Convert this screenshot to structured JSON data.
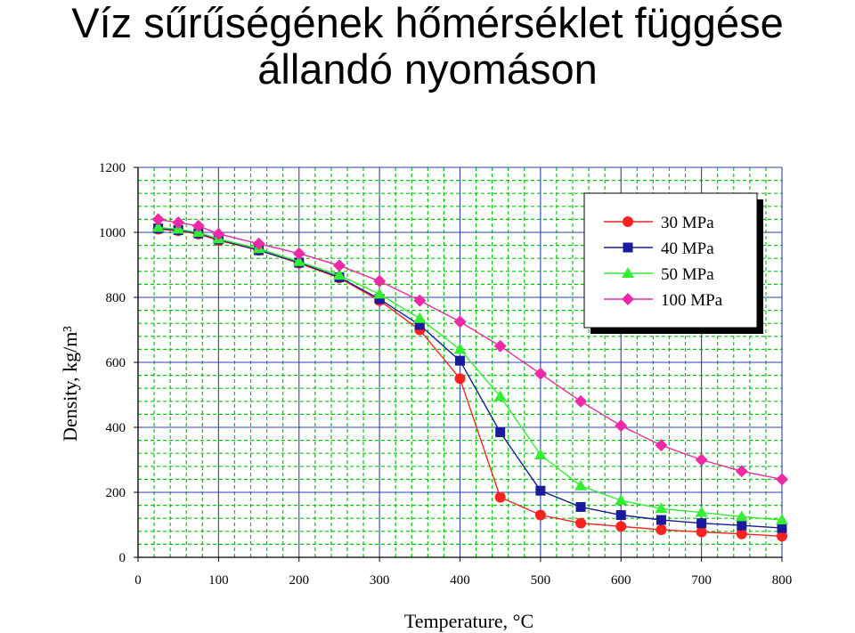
{
  "slide": {
    "title_line1": "Víz sűrűségének hőmérséklet függése",
    "title_line2": "állandó nyomáson"
  },
  "chart_data": {
    "type": "line",
    "xlabel": "Temperature, °C",
    "ylabel": "Density, kg/m³",
    "xlim": [
      0,
      800
    ],
    "ylim": [
      0,
      1200
    ],
    "xticks": [
      0,
      100,
      200,
      300,
      400,
      500,
      600,
      700,
      800
    ],
    "yticks": [
      0,
      200,
      400,
      600,
      800,
      1000,
      1200
    ],
    "grid": true,
    "grid_color": "#00cc00",
    "legend_position": "top-right",
    "x": [
      25,
      50,
      75,
      100,
      150,
      200,
      250,
      300,
      350,
      400,
      450,
      500,
      550,
      600,
      650,
      700,
      750,
      800
    ],
    "series": [
      {
        "name": "30 MPa",
        "color": "#ff2020",
        "marker": "circle",
        "points": [
          [
            25,
            1010
          ],
          [
            50,
            1005
          ],
          [
            75,
            995
          ],
          [
            100,
            975
          ],
          [
            150,
            945
          ],
          [
            200,
            905
          ],
          [
            250,
            860
          ],
          [
            300,
            790
          ],
          [
            350,
            700
          ],
          [
            400,
            550
          ],
          [
            450,
            185
          ],
          [
            500,
            130
          ],
          [
            550,
            105
          ],
          [
            600,
            95
          ],
          [
            650,
            85
          ],
          [
            700,
            78
          ],
          [
            750,
            72
          ],
          [
            800,
            65
          ]
        ]
      },
      {
        "name": "40 MPa",
        "color": "#1a1a9c",
        "marker": "square",
        "points": [
          [
            25,
            1012
          ],
          [
            50,
            1007
          ],
          [
            75,
            997
          ],
          [
            100,
            978
          ],
          [
            150,
            945
          ],
          [
            200,
            907
          ],
          [
            250,
            862
          ],
          [
            300,
            795
          ],
          [
            350,
            715
          ],
          [
            400,
            605
          ],
          [
            450,
            385
          ],
          [
            500,
            205
          ],
          [
            550,
            155
          ],
          [
            600,
            130
          ],
          [
            650,
            115
          ],
          [
            700,
            105
          ],
          [
            750,
            98
          ],
          [
            800,
            90
          ]
        ]
      },
      {
        "name": "50 MPa",
        "color": "#33ee33",
        "marker": "triangle",
        "points": [
          [
            25,
            1015
          ],
          [
            50,
            1010
          ],
          [
            75,
            1000
          ],
          [
            100,
            980
          ],
          [
            150,
            950
          ],
          [
            200,
            910
          ],
          [
            250,
            868
          ],
          [
            300,
            810
          ],
          [
            350,
            735
          ],
          [
            400,
            640
          ],
          [
            450,
            495
          ],
          [
            500,
            315
          ],
          [
            550,
            220
          ],
          [
            600,
            175
          ],
          [
            650,
            150
          ],
          [
            700,
            138
          ],
          [
            750,
            125
          ],
          [
            800,
            115
          ]
        ]
      },
      {
        "name": "100 MPa",
        "color": "#ee2aa6",
        "marker": "diamond",
        "points": [
          [
            25,
            1040
          ],
          [
            50,
            1030
          ],
          [
            75,
            1020
          ],
          [
            100,
            995
          ],
          [
            150,
            965
          ],
          [
            200,
            935
          ],
          [
            250,
            898
          ],
          [
            300,
            850
          ],
          [
            350,
            790
          ],
          [
            400,
            725
          ],
          [
            450,
            650
          ],
          [
            500,
            565
          ],
          [
            550,
            480
          ],
          [
            600,
            405
          ],
          [
            650,
            345
          ],
          [
            700,
            300
          ],
          [
            750,
            265
          ],
          [
            800,
            240
          ]
        ]
      }
    ]
  }
}
